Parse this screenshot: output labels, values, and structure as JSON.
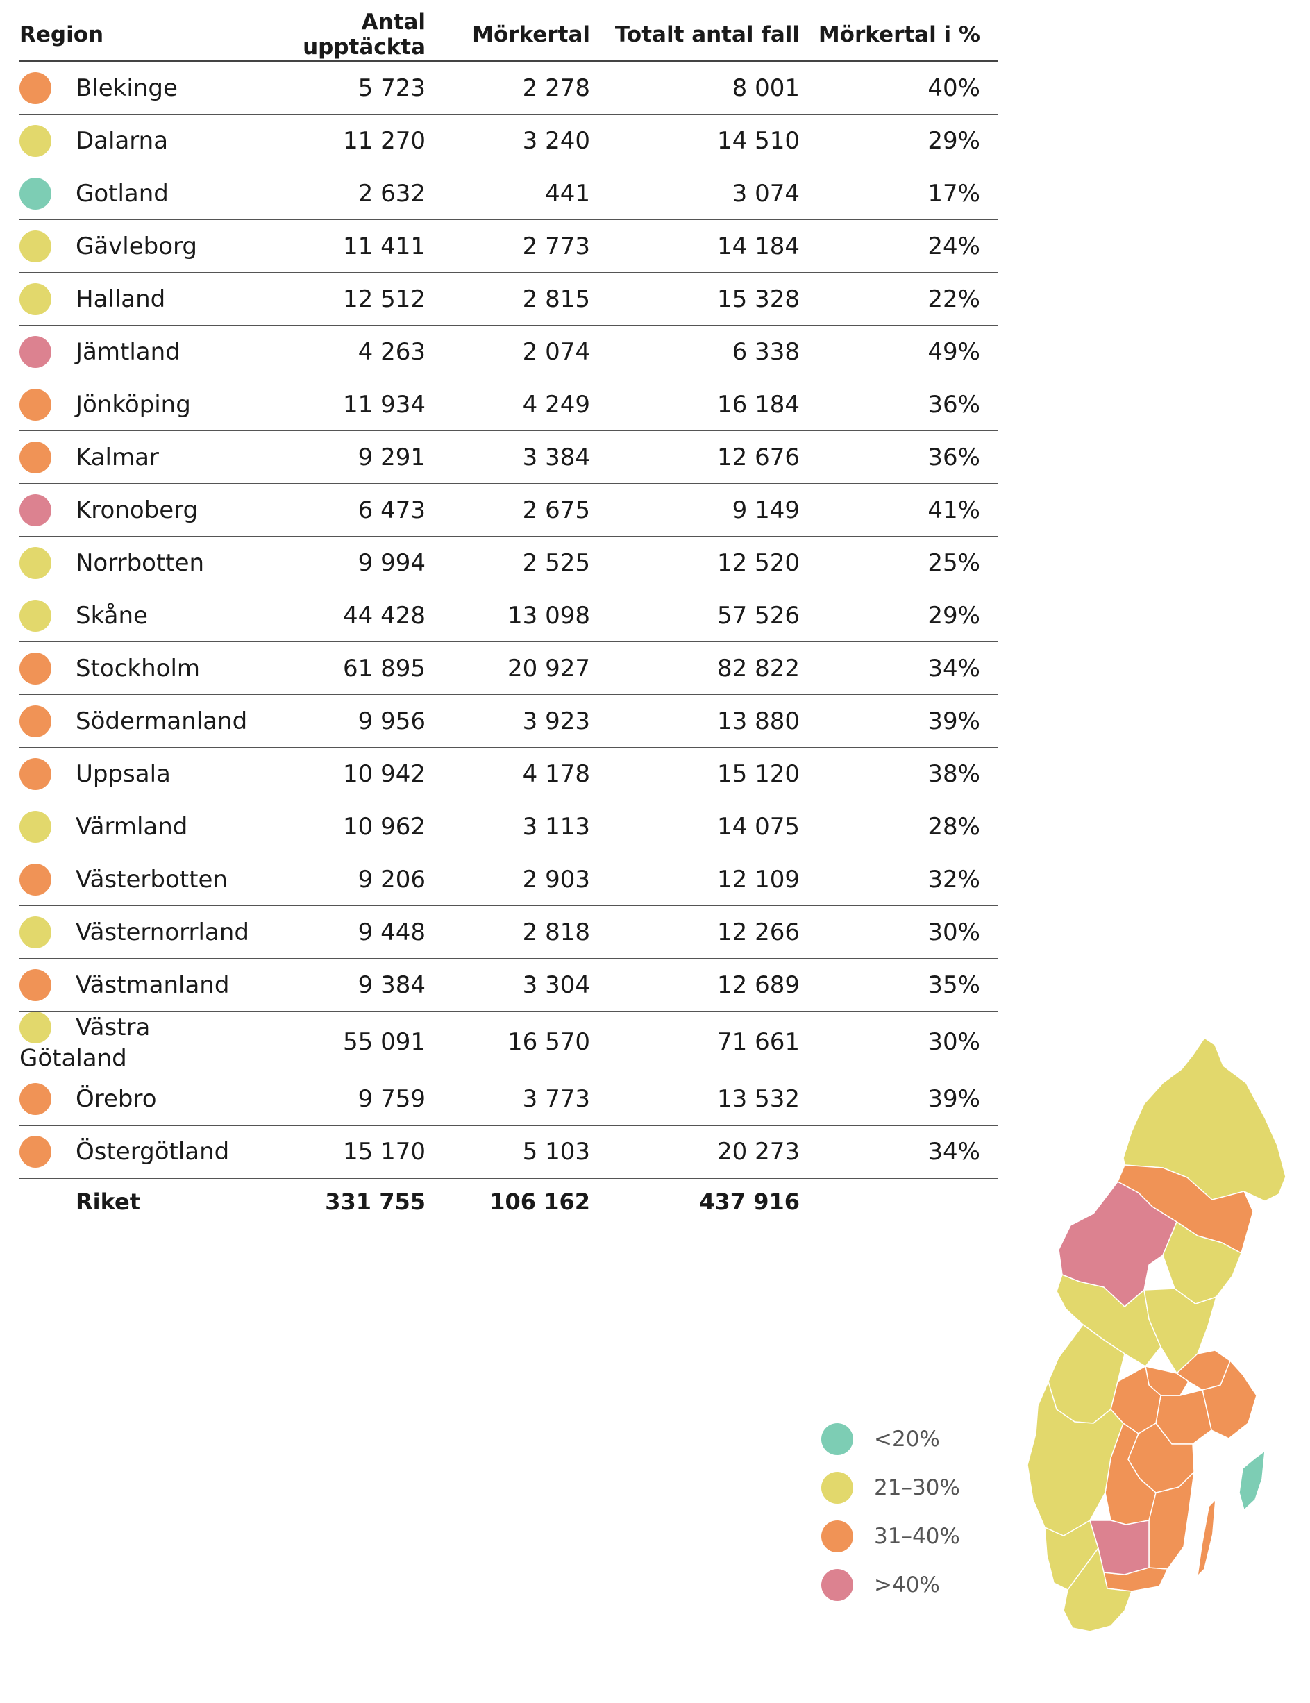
{
  "colors": {
    "lt20": "#7dcdb4",
    "21_30": "#e2d86c",
    "31_40": "#f09356",
    "gt40": "#dc8290"
  },
  "chart_data": {
    "type": "table",
    "columns": [
      "Region",
      "Antal upptäckta",
      "Mörkertal",
      "Totalt antal fall",
      "Mörkertal i %"
    ],
    "rows": [
      {
        "region": "Blekinge",
        "detected": "5 723",
        "dark": "2 278",
        "total": "8 001",
        "pct": "40%",
        "cls": "31_40"
      },
      {
        "region": "Dalarna",
        "detected": "11 270",
        "dark": "3 240",
        "total": "14 510",
        "pct": "29%",
        "cls": "21_30"
      },
      {
        "region": "Gotland",
        "detected": "2 632",
        "dark": "441",
        "total": "3 074",
        "pct": "17%",
        "cls": "lt20"
      },
      {
        "region": "Gävleborg",
        "detected": "11 411",
        "dark": "2 773",
        "total": "14 184",
        "pct": "24%",
        "cls": "21_30"
      },
      {
        "region": "Halland",
        "detected": "12 512",
        "dark": "2 815",
        "total": "15 328",
        "pct": "22%",
        "cls": "21_30"
      },
      {
        "region": "Jämtland",
        "detected": "4 263",
        "dark": "2 074",
        "total": "6 338",
        "pct": "49%",
        "cls": "gt40"
      },
      {
        "region": "Jönköping",
        "detected": "11 934",
        "dark": "4 249",
        "total": "16 184",
        "pct": "36%",
        "cls": "31_40"
      },
      {
        "region": "Kalmar",
        "detected": "9 291",
        "dark": "3 384",
        "total": "12 676",
        "pct": "36%",
        "cls": "31_40"
      },
      {
        "region": "Kronoberg",
        "detected": "6 473",
        "dark": "2 675",
        "total": "9 149",
        "pct": "41%",
        "cls": "gt40"
      },
      {
        "region": "Norrbotten",
        "detected": "9 994",
        "dark": "2 525",
        "total": "12 520",
        "pct": "25%",
        "cls": "21_30"
      },
      {
        "region": "Skåne",
        "detected": "44 428",
        "dark": "13 098",
        "total": "57 526",
        "pct": "29%",
        "cls": "21_30"
      },
      {
        "region": "Stockholm",
        "detected": "61 895",
        "dark": "20 927",
        "total": "82 822",
        "pct": "34%",
        "cls": "31_40"
      },
      {
        "region": "Södermanland",
        "detected": "9 956",
        "dark": "3 923",
        "total": "13 880",
        "pct": "39%",
        "cls": "31_40"
      },
      {
        "region": "Uppsala",
        "detected": "10 942",
        "dark": "4 178",
        "total": "15 120",
        "pct": "38%",
        "cls": "31_40"
      },
      {
        "region": "Värmland",
        "detected": "10 962",
        "dark": "3 113",
        "total": "14 075",
        "pct": "28%",
        "cls": "21_30"
      },
      {
        "region": "Västerbotten",
        "detected": "9 206",
        "dark": "2 903",
        "total": "12 109",
        "pct": "32%",
        "cls": "31_40"
      },
      {
        "region": "Västernorrland",
        "detected": "9 448",
        "dark": "2 818",
        "total": "12 266",
        "pct": "30%",
        "cls": "21_30"
      },
      {
        "region": "Västmanland",
        "detected": "9 384",
        "dark": "3 304",
        "total": "12 689",
        "pct": "35%",
        "cls": "31_40"
      },
      {
        "region": "Västra Götaland",
        "detected": "55 091",
        "dark": "16 570",
        "total": "71 661",
        "pct": "30%",
        "cls": "21_30"
      },
      {
        "region": "Örebro",
        "detected": "9 759",
        "dark": "3 773",
        "total": "13 532",
        "pct": "39%",
        "cls": "31_40"
      },
      {
        "region": "Östergötland",
        "detected": "15 170",
        "dark": "5 103",
        "total": "20 273",
        "pct": "34%",
        "cls": "31_40"
      }
    ],
    "total": {
      "label": "Riket",
      "detected": "331 755",
      "dark": "106 162",
      "total": "437 916"
    },
    "legend": [
      {
        "label": "<20%",
        "cls": "lt20"
      },
      {
        "label": "21–30%",
        "cls": "21_30"
      },
      {
        "label": "31–40%",
        "cls": "31_40"
      },
      {
        "label": ">40%",
        "cls": "gt40"
      }
    ]
  }
}
